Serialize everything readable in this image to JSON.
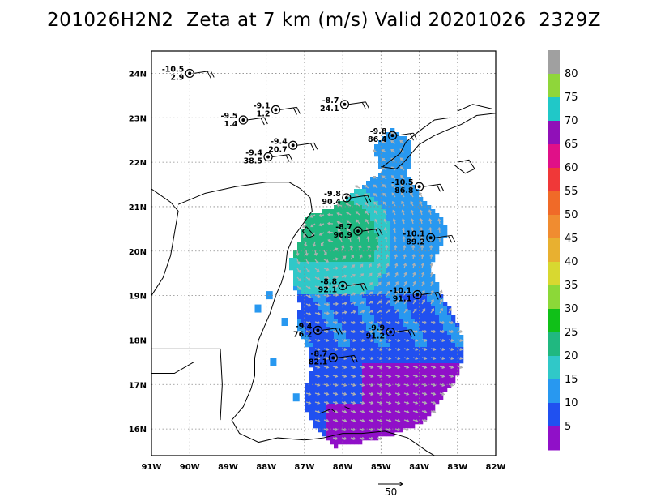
{
  "title": "201026H2N2  Zeta at 7 km (m/s) Valid 20201026  2329Z",
  "map": {
    "lon_range": [
      -91,
      -82
    ],
    "lat_range": [
      15.4,
      24.5
    ],
    "lon_ticks": [
      "91W",
      "90W",
      "89W",
      "88W",
      "87W",
      "86W",
      "85W",
      "84W",
      "83W",
      "82W"
    ],
    "lat_ticks": [
      "24N",
      "23N",
      "22N",
      "21N",
      "20N",
      "19N",
      "18N",
      "17N",
      "16N"
    ],
    "grid": "dotted"
  },
  "colorbar": {
    "labels": [
      "80",
      "75",
      "70",
      "65",
      "60",
      "55",
      "50",
      "45",
      "40",
      "35",
      "30",
      "25",
      "20",
      "15",
      "10",
      "5"
    ],
    "colors": [
      "#a0a0a0",
      "#8fd63a",
      "#20c8c8",
      "#9010b8",
      "#e01088",
      "#f03838",
      "#f06a28",
      "#f08c30",
      "#e8b030",
      "#d8d830",
      "#8cd838",
      "#10c018",
      "#20b880",
      "#30c8c8",
      "#2898f0",
      "#2050f0",
      "#9010c8"
    ]
  },
  "observations": [
    {
      "zeta": "-10.5",
      "val": "2.9",
      "lon": -90.0,
      "lat": 24.0
    },
    {
      "zeta": "-9.1",
      "val": "1.2",
      "lon": -87.75,
      "lat": 23.18
    },
    {
      "zeta": "-9.5",
      "val": "1.4",
      "lon": -88.6,
      "lat": 22.95
    },
    {
      "zeta": "-8.7",
      "val": "24.1",
      "lon": -85.95,
      "lat": 23.3
    },
    {
      "zeta": "-9.8",
      "val": "86.4",
      "lon": -84.7,
      "lat": 22.6
    },
    {
      "zeta": "-9.4",
      "val": "20.7",
      "lon": -87.3,
      "lat": 22.38
    },
    {
      "zeta": "-9.4",
      "val": "38.5",
      "lon": -87.95,
      "lat": 22.12
    },
    {
      "zeta": "-10.5",
      "val": "86.8",
      "lon": -84.0,
      "lat": 21.45
    },
    {
      "zeta": "-9.8",
      "val": "90.4",
      "lon": -85.9,
      "lat": 21.2
    },
    {
      "zeta": "-8.7",
      "val": "96.9",
      "lon": -85.6,
      "lat": 20.45
    },
    {
      "zeta": "-10.1",
      "val": "89.2",
      "lon": -83.7,
      "lat": 20.3
    },
    {
      "zeta": "-8.8",
      "val": "92.1",
      "lon": -86.0,
      "lat": 19.22
    },
    {
      "zeta": "-10.1",
      "val": "91.1",
      "lon": -84.05,
      "lat": 19.02
    },
    {
      "zeta": "-9.4",
      "val": "76.2",
      "lon": -86.65,
      "lat": 18.22
    },
    {
      "zeta": "-9.9",
      "val": "91.2",
      "lon": -84.75,
      "lat": 18.18
    },
    {
      "zeta": "-8.7",
      "val": "82.1",
      "lon": -86.25,
      "lat": 17.6
    }
  ],
  "scale_vector": {
    "label": "50"
  }
}
